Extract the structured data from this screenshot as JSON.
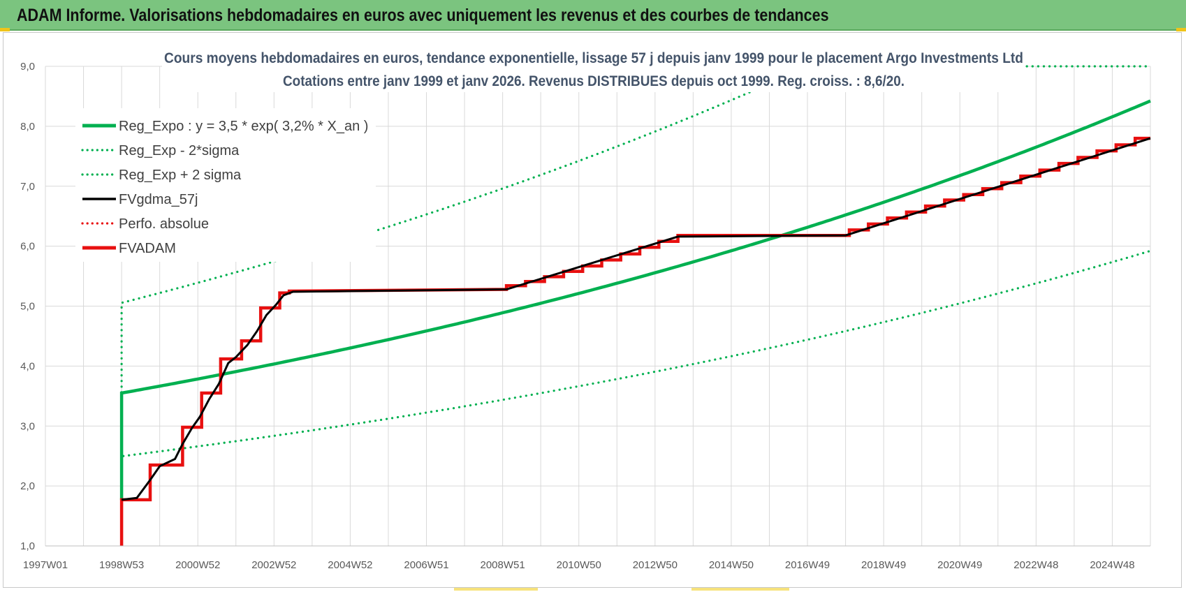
{
  "header": {
    "title": "ADAM Informe. Valorisations hebdomadaires en euros avec uniquement les revenus et des courbes de tendances"
  },
  "colors": {
    "header_bg": "#7bc47f",
    "reg_green": "#00b050",
    "fvadam_red": "#e81010",
    "fvgdma_black": "#000000",
    "title_text": "#44546a"
  },
  "chart_data": {
    "type": "line",
    "title": [
      "Cours moyens hebdomadaires en euros, tendance exponentielle, lissage 57 j depuis janv 1999 pour le placement Argo Investments Ltd",
      "Cotations entre janv 1999 et janv 2026. Revenus DISTRIBUES depuis oct 1999. Reg. croiss. : 8,6/20."
    ],
    "xlabel": "",
    "ylabel": "",
    "ylim": [
      1.0,
      9.0
    ],
    "y_ticks": [
      "1,0",
      "2,0",
      "3,0",
      "4,0",
      "5,0",
      "6,0",
      "7,0",
      "8,0",
      "9,0"
    ],
    "x_range_years": [
      1997.0,
      2026.0
    ],
    "x_ticks": [
      {
        "label": "1997W01",
        "year": 1997.0
      },
      {
        "label": "1998W53",
        "year": 1999.0
      },
      {
        "label": "2000W52",
        "year": 2001.0
      },
      {
        "label": "2002W52",
        "year": 2003.0
      },
      {
        "label": "2004W52",
        "year": 2005.0
      },
      {
        "label": "2006W51",
        "year": 2007.0
      },
      {
        "label": "2008W51",
        "year": 2009.0
      },
      {
        "label": "2010W50",
        "year": 2011.0
      },
      {
        "label": "2012W50",
        "year": 2013.0
      },
      {
        "label": "2014W50",
        "year": 2015.0
      },
      {
        "label": "2016W49",
        "year": 2017.0
      },
      {
        "label": "2018W49",
        "year": 2019.0
      },
      {
        "label": "2020W49",
        "year": 2021.0
      },
      {
        "label": "2022W48",
        "year": 2023.0
      },
      {
        "label": "2024W48",
        "year": 2025.0
      }
    ],
    "grid": true,
    "legend_position": "top-left",
    "legend": [
      {
        "label": "Reg_Expo : y = 3,5 * exp( 3,2% *  X_an )",
        "color": "#00b050",
        "style": "solid-thick"
      },
      {
        "label": "Reg_Exp - 2*sigma",
        "color": "#00b050",
        "style": "dotted"
      },
      {
        "label": "Reg_Exp + 2 sigma",
        "color": "#00b050",
        "style": "dotted"
      },
      {
        "label": "FVgdma_57j",
        "color": "#000000",
        "style": "solid"
      },
      {
        "label": "Perfo. absolue",
        "color": "#e81010",
        "style": "dotted"
      },
      {
        "label": "FVADAM",
        "color": "#e81010",
        "style": "solid-thick"
      }
    ],
    "regression": {
      "a": 3.55,
      "rate": 0.032,
      "start_year": 1999.0,
      "upper_factor": 1.424,
      "lower_factor": 0.703
    },
    "series": [
      {
        "name": "FVADAM",
        "color": "#e81010",
        "points": [
          [
            1999.0,
            1.0
          ],
          [
            1999.0,
            1.77
          ],
          [
            1999.75,
            1.77
          ],
          [
            1999.75,
            2.35
          ],
          [
            2000.6,
            2.35
          ],
          [
            2000.6,
            2.98
          ],
          [
            2001.1,
            2.98
          ],
          [
            2001.1,
            3.55
          ],
          [
            2001.6,
            3.55
          ],
          [
            2001.6,
            4.12
          ],
          [
            2002.15,
            4.12
          ],
          [
            2002.15,
            4.42
          ],
          [
            2002.65,
            4.42
          ],
          [
            2002.65,
            4.97
          ],
          [
            2003.15,
            4.97
          ],
          [
            2003.15,
            5.22
          ],
          [
            2003.4,
            5.22
          ],
          [
            2003.4,
            5.25
          ],
          [
            2009.1,
            5.28
          ],
          [
            2009.1,
            5.34
          ],
          [
            2009.6,
            5.34
          ],
          [
            2009.6,
            5.41
          ],
          [
            2010.1,
            5.41
          ],
          [
            2010.1,
            5.49
          ],
          [
            2010.6,
            5.49
          ],
          [
            2010.6,
            5.58
          ],
          [
            2011.1,
            5.58
          ],
          [
            2011.1,
            5.67
          ],
          [
            2011.6,
            5.67
          ],
          [
            2011.6,
            5.77
          ],
          [
            2012.1,
            5.77
          ],
          [
            2012.1,
            5.87
          ],
          [
            2012.6,
            5.87
          ],
          [
            2012.6,
            5.98
          ],
          [
            2013.1,
            5.98
          ],
          [
            2013.1,
            6.08
          ],
          [
            2013.6,
            6.08
          ],
          [
            2013.6,
            6.18
          ],
          [
            2018.1,
            6.18
          ],
          [
            2018.1,
            6.27
          ],
          [
            2018.6,
            6.27
          ],
          [
            2018.6,
            6.37
          ],
          [
            2019.1,
            6.37
          ],
          [
            2019.1,
            6.47
          ],
          [
            2019.6,
            6.47
          ],
          [
            2019.6,
            6.57
          ],
          [
            2020.1,
            6.57
          ],
          [
            2020.1,
            6.67
          ],
          [
            2020.6,
            6.67
          ],
          [
            2020.6,
            6.77
          ],
          [
            2021.1,
            6.77
          ],
          [
            2021.1,
            6.86
          ],
          [
            2021.6,
            6.86
          ],
          [
            2021.6,
            6.96
          ],
          [
            2022.1,
            6.96
          ],
          [
            2022.1,
            7.06
          ],
          [
            2022.6,
            7.06
          ],
          [
            2022.6,
            7.17
          ],
          [
            2023.1,
            7.17
          ],
          [
            2023.1,
            7.27
          ],
          [
            2023.6,
            7.27
          ],
          [
            2023.6,
            7.38
          ],
          [
            2024.1,
            7.38
          ],
          [
            2024.1,
            7.48
          ],
          [
            2024.6,
            7.48
          ],
          [
            2024.6,
            7.59
          ],
          [
            2025.1,
            7.59
          ],
          [
            2025.1,
            7.69
          ],
          [
            2025.6,
            7.69
          ],
          [
            2025.6,
            7.8
          ],
          [
            2026.0,
            7.8
          ]
        ]
      },
      {
        "name": "FVgdma_57j",
        "color": "#000000",
        "points": [
          [
            1999.0,
            1.77
          ],
          [
            1999.4,
            1.8
          ],
          [
            1999.75,
            2.1
          ],
          [
            2000.0,
            2.33
          ],
          [
            2000.4,
            2.45
          ],
          [
            2000.6,
            2.7
          ],
          [
            2000.85,
            2.97
          ],
          [
            2001.05,
            3.15
          ],
          [
            2001.3,
            3.45
          ],
          [
            2001.55,
            3.7
          ],
          [
            2001.8,
            4.05
          ],
          [
            2002.0,
            4.15
          ],
          [
            2002.3,
            4.35
          ],
          [
            2002.55,
            4.58
          ],
          [
            2002.8,
            4.85
          ],
          [
            2003.05,
            5.02
          ],
          [
            2003.25,
            5.18
          ],
          [
            2003.5,
            5.24
          ],
          [
            2009.1,
            5.28
          ],
          [
            2013.6,
            6.16
          ],
          [
            2018.0,
            6.18
          ],
          [
            2026.0,
            7.8
          ]
        ]
      }
    ]
  }
}
